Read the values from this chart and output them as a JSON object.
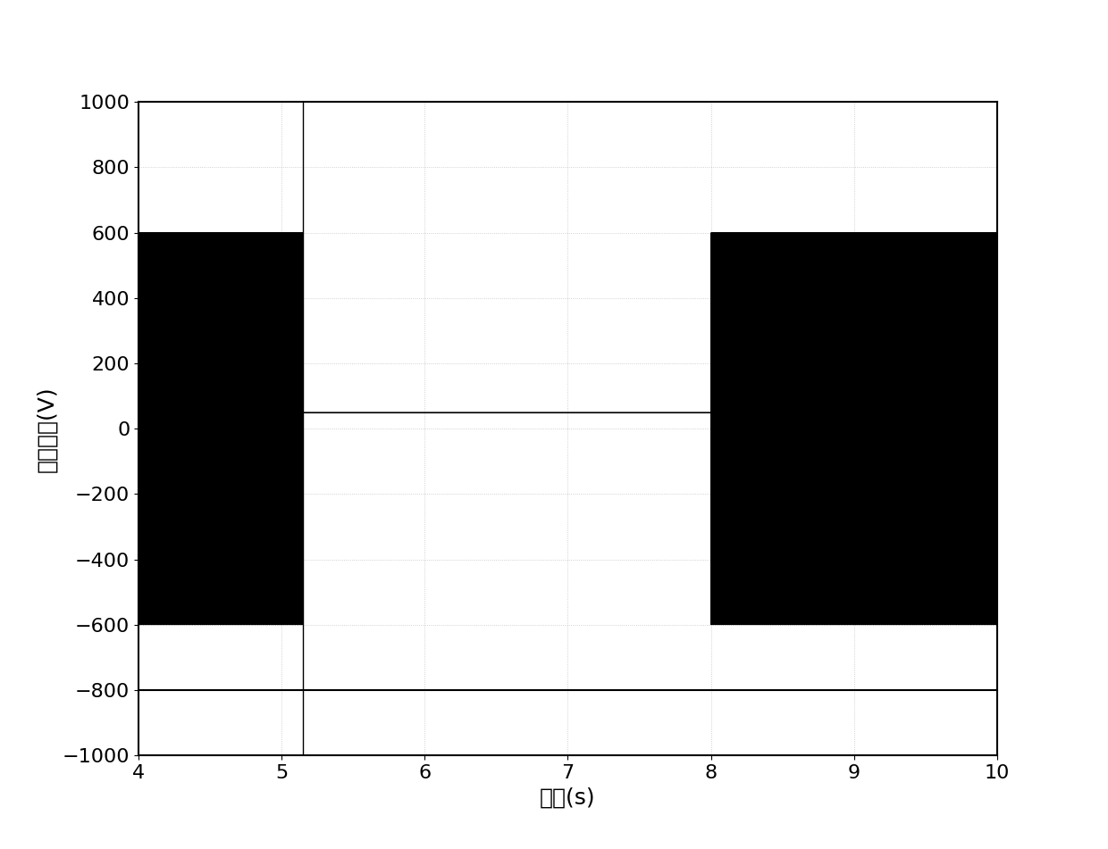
{
  "xlabel": "时间(s)",
  "ylabel": "输出电压(V)",
  "xlim": [
    4,
    10
  ],
  "ylim": [
    -1000,
    1000
  ],
  "xticks": [
    4,
    5,
    6,
    7,
    8,
    9,
    10
  ],
  "yticks": [
    -1000,
    -800,
    -600,
    -400,
    -200,
    0,
    200,
    400,
    600,
    800,
    1000
  ],
  "line_color": "#000000",
  "background_color": "#ffffff",
  "vline_x": 5.15,
  "hline_y1": 50,
  "hline_y2": -800,
  "segment1_start": 4.0,
  "segment1_end": 5.15,
  "segment1_amplitude": 537,
  "segment1_pwm_freq": 50,
  "segment1_carrier_freq": 2000,
  "segment2_start": 8.0,
  "segment2_end": 10.0,
  "segment2_max_amplitude": 537,
  "segment2_fundamental_freq": 50,
  "segment2_carrier_freq": 2000,
  "Vdc": 600,
  "font_size_labels": 18,
  "font_size_ticks": 16
}
